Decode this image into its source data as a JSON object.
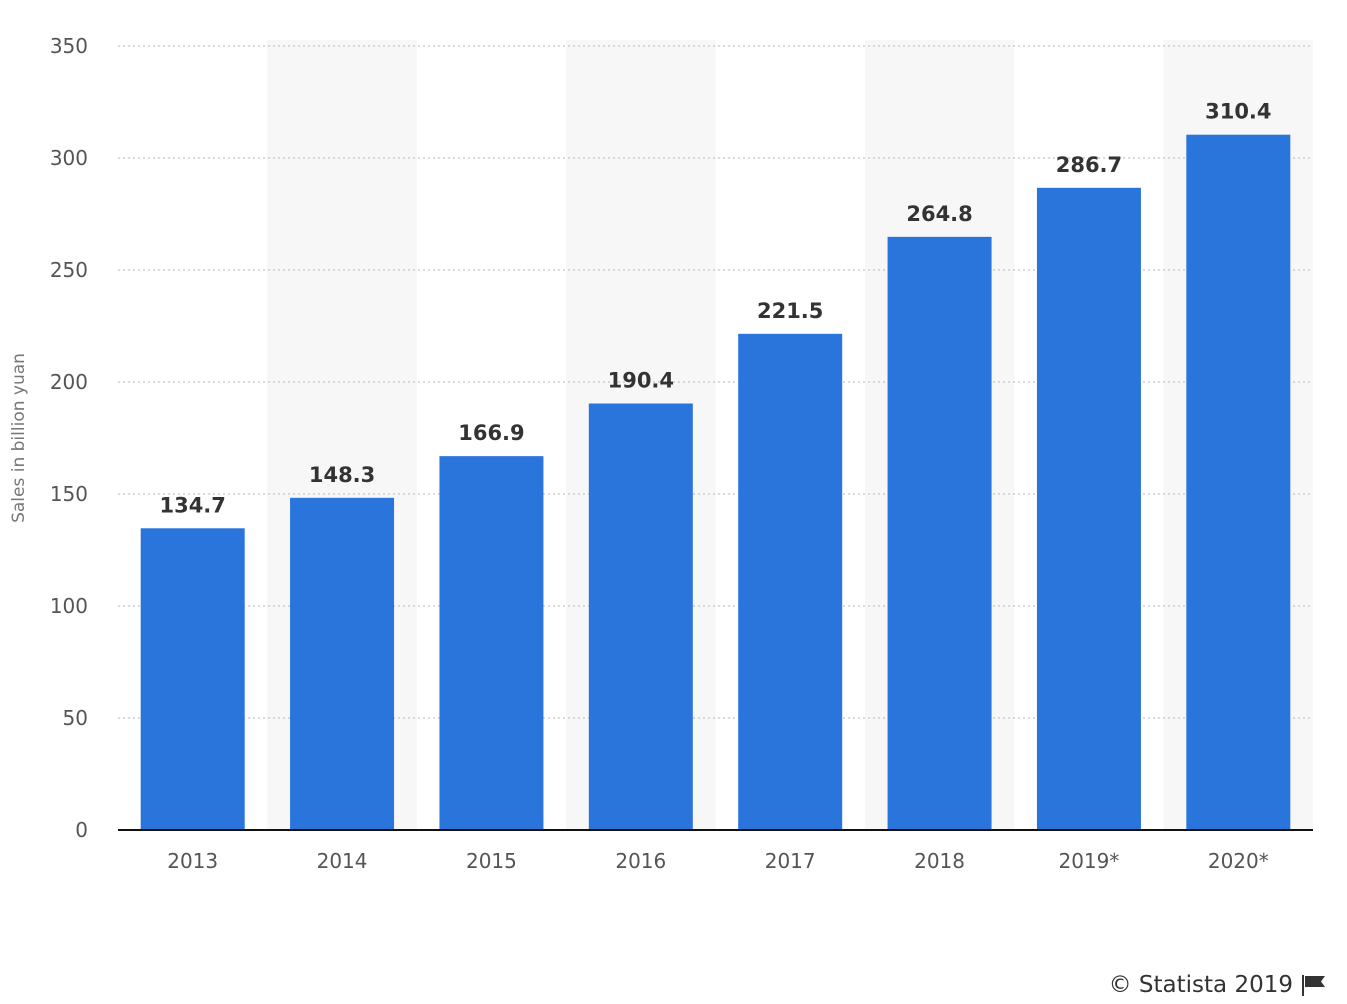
{
  "chart_data": {
    "type": "bar",
    "categories": [
      "2013",
      "2014",
      "2015",
      "2016",
      "2017",
      "2018",
      "2019*",
      "2020*"
    ],
    "values": [
      134.7,
      148.3,
      166.9,
      190.4,
      221.5,
      264.8,
      286.7,
      310.4
    ],
    "value_labels": [
      "134.7",
      "148.3",
      "166.9",
      "190.4",
      "221.5",
      "264.8",
      "286.7",
      "310.4"
    ],
    "yticks": [
      "0",
      "50",
      "100",
      "150",
      "200",
      "250",
      "300",
      "350"
    ],
    "ylabel": "Sales in billion yuan",
    "xlabel": "",
    "ylim": [
      0,
      350
    ],
    "grid": true,
    "bar_color": "#2a75dc",
    "band_color": "#f7f7f7"
  },
  "credit": {
    "text": "© Statista 2019",
    "icon": "flag-icon"
  }
}
